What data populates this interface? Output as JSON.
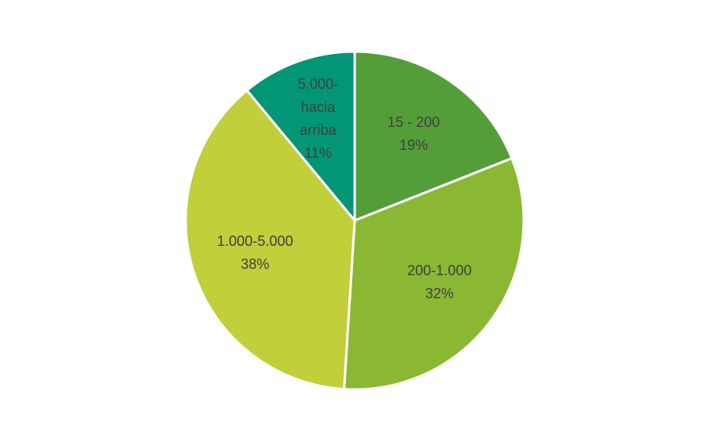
{
  "chart_data": {
    "type": "pie",
    "categories": [
      "15 - 200",
      "200-1.000",
      "1.000-5.000",
      "5.000-hacia arriba"
    ],
    "values": [
      19,
      32,
      38,
      11
    ],
    "value_labels": [
      "19%",
      "32%",
      "38%",
      "11%"
    ],
    "colors": [
      "#549e39",
      "#8ab833",
      "#c0cf3a",
      "#029676"
    ]
  }
}
